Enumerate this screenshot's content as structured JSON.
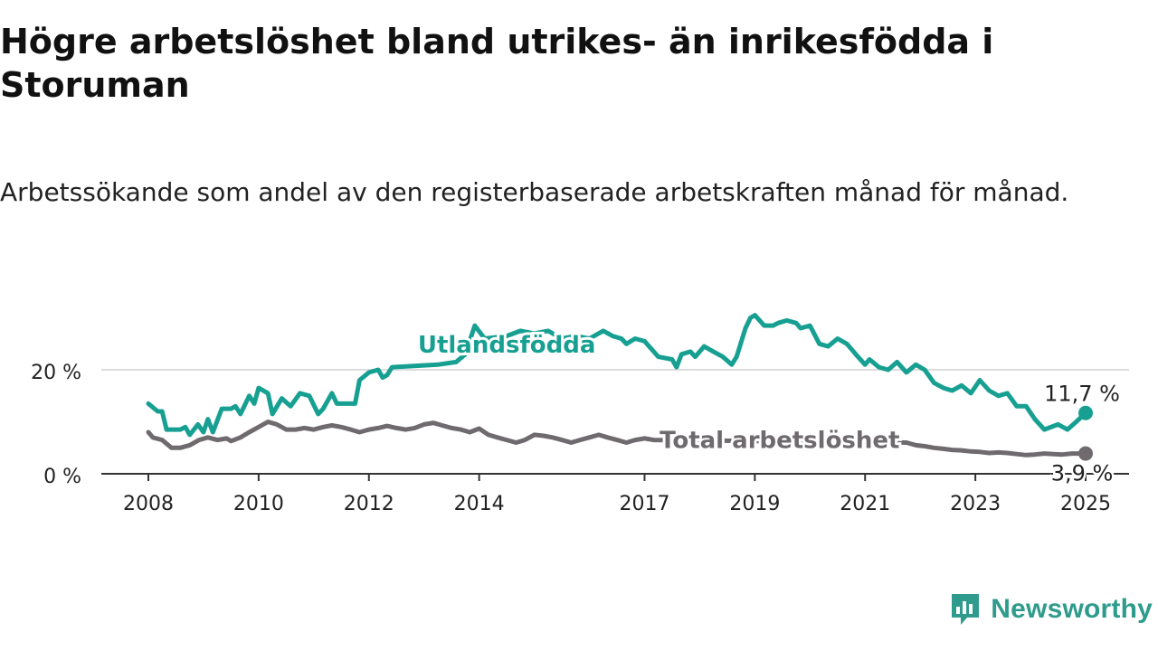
{
  "title": "Högre arbetslöshet bland utrikes- än inrikesfödda i Storuman",
  "subtitle": "Arbetssökande som andel av den registerbaserade arbetskraften månad för månad.",
  "brand": {
    "name": "Newsworthy",
    "logo_icon": "bar-chart-shield-icon"
  },
  "chart_data": {
    "type": "line",
    "xlim": [
      2008,
      2025.3
    ],
    "ylim": [
      0,
      32
    ],
    "x_ticks": [
      2008,
      2010,
      2012,
      2014,
      2017,
      2019,
      2021,
      2023,
      2025
    ],
    "x_tick_labels": [
      "2008",
      "2010",
      "2012",
      "2014",
      "2017",
      "2019",
      "2021",
      "2023",
      "2025"
    ],
    "y_ticks": [
      0,
      20
    ],
    "y_tick_labels": [
      "0 %",
      "20 %"
    ],
    "grid": "horizontal",
    "series": [
      {
        "name": "Utlandsfödda",
        "color": "#17a092",
        "end_label": "11,7 %",
        "points": [
          [
            2008.0,
            13.5
          ],
          [
            2008.17,
            12.0
          ],
          [
            2008.25,
            12.0
          ],
          [
            2008.33,
            8.5
          ],
          [
            2008.58,
            8.5
          ],
          [
            2008.67,
            9.0
          ],
          [
            2008.75,
            7.5
          ],
          [
            2008.9,
            9.5
          ],
          [
            2009.0,
            8.0
          ],
          [
            2009.08,
            10.5
          ],
          [
            2009.17,
            8.0
          ],
          [
            2009.33,
            12.5
          ],
          [
            2009.5,
            12.5
          ],
          [
            2009.58,
            13.0
          ],
          [
            2009.67,
            11.5
          ],
          [
            2009.83,
            15.0
          ],
          [
            2009.92,
            13.5
          ],
          [
            2010.0,
            16.5
          ],
          [
            2010.17,
            15.5
          ],
          [
            2010.25,
            11.5
          ],
          [
            2010.42,
            14.5
          ],
          [
            2010.58,
            13.0
          ],
          [
            2010.75,
            15.5
          ],
          [
            2010.92,
            15.0
          ],
          [
            2011.08,
            11.5
          ],
          [
            2011.17,
            12.5
          ],
          [
            2011.33,
            15.5
          ],
          [
            2011.42,
            13.5
          ],
          [
            2011.67,
            13.5
          ],
          [
            2011.75,
            13.5
          ],
          [
            2011.83,
            18.0
          ],
          [
            2012.0,
            19.5
          ],
          [
            2012.17,
            20.0
          ],
          [
            2012.25,
            18.5
          ],
          [
            2012.33,
            19.0
          ],
          [
            2012.42,
            20.5
          ],
          [
            2013.25,
            21.0
          ],
          [
            2013.58,
            21.5
          ],
          [
            2013.75,
            23.0
          ],
          [
            2013.92,
            28.5
          ],
          [
            2014.1,
            26.0
          ],
          [
            2014.5,
            26.5
          ],
          [
            2014.75,
            27.5
          ],
          [
            2015.0,
            27.0
          ],
          [
            2015.25,
            27.5
          ],
          [
            2015.5,
            26.0
          ],
          [
            2015.75,
            26.5
          ],
          [
            2016.0,
            26.0
          ],
          [
            2016.25,
            27.5
          ],
          [
            2016.42,
            26.5
          ],
          [
            2016.58,
            26.0
          ],
          [
            2016.67,
            25.0
          ],
          [
            2016.83,
            26.0
          ],
          [
            2017.0,
            25.5
          ],
          [
            2017.25,
            22.5
          ],
          [
            2017.5,
            22.0
          ],
          [
            2017.58,
            20.5
          ],
          [
            2017.67,
            23.0
          ],
          [
            2017.83,
            23.5
          ],
          [
            2017.92,
            22.5
          ],
          [
            2018.08,
            24.5
          ],
          [
            2018.25,
            23.5
          ],
          [
            2018.42,
            22.5
          ],
          [
            2018.58,
            21.0
          ],
          [
            2018.67,
            22.5
          ],
          [
            2018.83,
            28.0
          ],
          [
            2018.92,
            30.0
          ],
          [
            2019.0,
            30.5
          ],
          [
            2019.17,
            28.5
          ],
          [
            2019.33,
            28.5
          ],
          [
            2019.42,
            29.0
          ],
          [
            2019.58,
            29.5
          ],
          [
            2019.75,
            29.0
          ],
          [
            2019.83,
            28.0
          ],
          [
            2020.0,
            28.5
          ],
          [
            2020.17,
            25.0
          ],
          [
            2020.33,
            24.5
          ],
          [
            2020.5,
            26.0
          ],
          [
            2020.67,
            25.0
          ],
          [
            2020.83,
            23.0
          ],
          [
            2021.0,
            21.0
          ],
          [
            2021.08,
            22.0
          ],
          [
            2021.25,
            20.5
          ],
          [
            2021.42,
            20.0
          ],
          [
            2021.58,
            21.5
          ],
          [
            2021.75,
            19.5
          ],
          [
            2021.92,
            21.0
          ],
          [
            2022.08,
            20.0
          ],
          [
            2022.25,
            17.5
          ],
          [
            2022.42,
            16.5
          ],
          [
            2022.58,
            16.0
          ],
          [
            2022.75,
            17.0
          ],
          [
            2022.92,
            15.5
          ],
          [
            2023.08,
            18.0
          ],
          [
            2023.25,
            16.0
          ],
          [
            2023.42,
            15.0
          ],
          [
            2023.58,
            15.5
          ],
          [
            2023.75,
            13.0
          ],
          [
            2023.92,
            13.0
          ],
          [
            2024.08,
            10.5
          ],
          [
            2024.25,
            8.5
          ],
          [
            2024.5,
            9.5
          ],
          [
            2024.67,
            8.5
          ],
          [
            2024.83,
            10.0
          ],
          [
            2025.0,
            11.7
          ]
        ]
      },
      {
        "name": "Total arbetslöshet",
        "color": "#6e6a6e",
        "end_label": "3,9 %",
        "points": [
          [
            2008.0,
            8.0
          ],
          [
            2008.08,
            7.0
          ],
          [
            2008.25,
            6.5
          ],
          [
            2008.42,
            5.0
          ],
          [
            2008.58,
            5.0
          ],
          [
            2008.75,
            5.5
          ],
          [
            2008.92,
            6.5
          ],
          [
            2009.08,
            7.0
          ],
          [
            2009.25,
            6.5
          ],
          [
            2009.42,
            6.8
          ],
          [
            2009.5,
            6.3
          ],
          [
            2009.67,
            7.0
          ],
          [
            2009.83,
            8.0
          ],
          [
            2010.0,
            9.0
          ],
          [
            2010.17,
            10.0
          ],
          [
            2010.33,
            9.5
          ],
          [
            2010.5,
            8.5
          ],
          [
            2010.67,
            8.5
          ],
          [
            2010.83,
            8.8
          ],
          [
            2011.0,
            8.5
          ],
          [
            2011.17,
            9.0
          ],
          [
            2011.33,
            9.3
          ],
          [
            2011.5,
            9.0
          ],
          [
            2011.67,
            8.5
          ],
          [
            2011.83,
            8.0
          ],
          [
            2012.0,
            8.5
          ],
          [
            2012.17,
            8.8
          ],
          [
            2012.33,
            9.2
          ],
          [
            2012.5,
            8.8
          ],
          [
            2012.67,
            8.5
          ],
          [
            2012.83,
            8.8
          ],
          [
            2013.0,
            9.5
          ],
          [
            2013.17,
            9.8
          ],
          [
            2013.33,
            9.3
          ],
          [
            2013.5,
            8.8
          ],
          [
            2013.67,
            8.5
          ],
          [
            2013.83,
            8.0
          ],
          [
            2014.0,
            8.7
          ],
          [
            2014.17,
            7.5
          ],
          [
            2014.33,
            7.0
          ],
          [
            2014.5,
            6.5
          ],
          [
            2014.67,
            6.0
          ],
          [
            2014.83,
            6.5
          ],
          [
            2015.0,
            7.5
          ],
          [
            2015.17,
            7.3
          ],
          [
            2015.33,
            7.0
          ],
          [
            2015.5,
            6.5
          ],
          [
            2015.67,
            6.0
          ],
          [
            2015.83,
            6.5
          ],
          [
            2016.0,
            7.0
          ],
          [
            2016.17,
            7.5
          ],
          [
            2016.33,
            7.0
          ],
          [
            2016.5,
            6.5
          ],
          [
            2016.67,
            6.0
          ],
          [
            2016.83,
            6.5
          ],
          [
            2017.0,
            6.8
          ],
          [
            2017.17,
            6.5
          ],
          [
            2021.75,
            6.0
          ],
          [
            2021.92,
            5.5
          ],
          [
            2022.08,
            5.3
          ],
          [
            2022.25,
            5.0
          ],
          [
            2022.42,
            4.8
          ],
          [
            2022.58,
            4.6
          ],
          [
            2022.75,
            4.5
          ],
          [
            2022.92,
            4.3
          ],
          [
            2023.08,
            4.2
          ],
          [
            2023.25,
            4.0
          ],
          [
            2023.42,
            4.1
          ],
          [
            2023.58,
            4.0
          ],
          [
            2023.75,
            3.8
          ],
          [
            2023.92,
            3.6
          ],
          [
            2024.08,
            3.7
          ],
          [
            2024.25,
            3.9
          ],
          [
            2024.42,
            3.8
          ],
          [
            2024.58,
            3.7
          ],
          [
            2024.75,
            3.9
          ],
          [
            2025.0,
            3.9
          ]
        ]
      }
    ],
    "line_labels": [
      {
        "text": "Utlandsfödda",
        "series": 0
      },
      {
        "text": "Total arbetslöshet",
        "series": 1
      }
    ]
  }
}
